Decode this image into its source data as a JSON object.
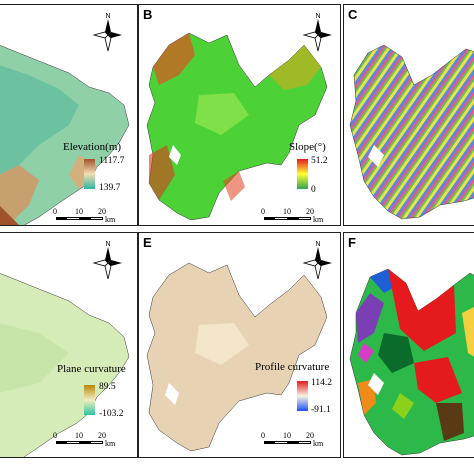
{
  "panels": [
    {
      "label": "",
      "legend_title": "Elevation(m)",
      "max": "1117.7",
      "min": "139.7",
      "scale": [
        "0",
        "10",
        "20",
        "km"
      ],
      "theme": "elevation"
    },
    {
      "label": "B",
      "legend_title": "Slope(°)",
      "max": "51.2",
      "min": "0",
      "scale": [
        "0",
        "10",
        "20",
        "km"
      ],
      "theme": "slope"
    },
    {
      "label": "C",
      "legend_title": "",
      "max": "",
      "min": "",
      "scale": [],
      "theme": "aspect"
    },
    {
      "label": "",
      "legend_title": "Plane curvature",
      "max": "89.5",
      "min": "-103.2",
      "scale": [
        "0",
        "10",
        "20",
        "km"
      ],
      "theme": "plane"
    },
    {
      "label": "E",
      "legend_title": "Profile curvature",
      "max": "114.2",
      "min": "-91.1",
      "scale": [
        "0",
        "10",
        "20",
        "km"
      ],
      "theme": "profile"
    },
    {
      "label": "F",
      "legend_title": "",
      "max": "",
      "min": "",
      "scale": [],
      "theme": "landuse"
    }
  ],
  "north_letter": "N",
  "themes": {
    "elevation": {
      "base": "#8ccaa0",
      "ramp": [
        "#a0522d",
        "#f5deb3",
        "#2bb5a0"
      ]
    },
    "slope": {
      "base": "#4cd137",
      "ramp": [
        "#e31a1c",
        "#ffff33",
        "#31a354"
      ]
    },
    "plane": {
      "base": "#cfe6b0",
      "ramp": [
        "#b8860b",
        "#f2eebd",
        "#2ec4a6"
      ]
    },
    "profile": {
      "base": "#e8d2b4",
      "ramp": [
        "#e31a1c",
        "#f7f4e0",
        "#1f4fff"
      ]
    }
  }
}
